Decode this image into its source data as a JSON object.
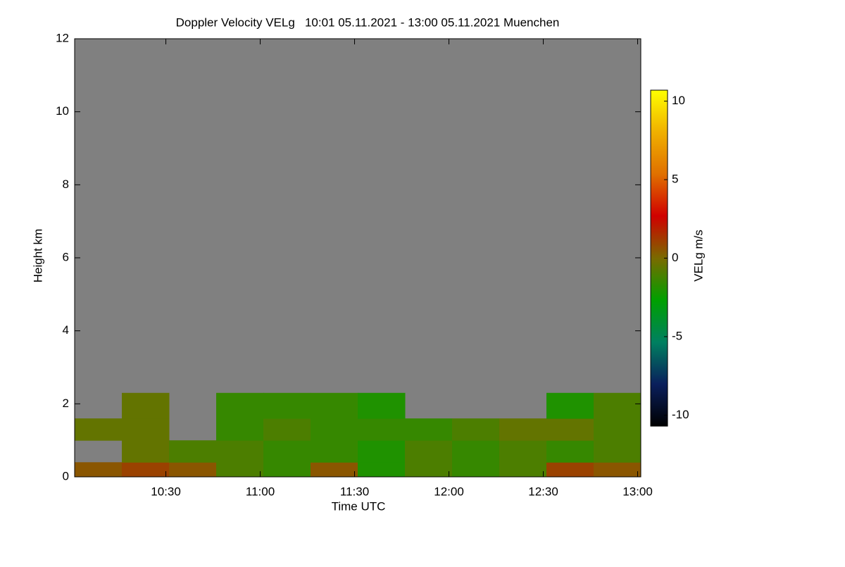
{
  "chart_data": {
    "type": "heatmap",
    "title": "Doppler Velocity VELg   10:01 05.11.2021 - 13:00 05.11.2021 Muenchen",
    "xlabel": "Time UTC",
    "ylabel": "Height km",
    "colorbar_label": "VELg m/s",
    "xlim": [
      601,
      781
    ],
    "xticks": [
      {
        "value": 630,
        "label": "10:30"
      },
      {
        "value": 660,
        "label": "11:00"
      },
      {
        "value": 690,
        "label": "11:30"
      },
      {
        "value": 720,
        "label": "12:00"
      },
      {
        "value": 750,
        "label": "12:30"
      },
      {
        "value": 780,
        "label": "13:00"
      }
    ],
    "ylim": [
      0,
      12
    ],
    "yticks": [
      0,
      2,
      4,
      6,
      8,
      10,
      12
    ],
    "clim": [
      -10.7,
      10.7
    ],
    "colorbar_ticks": [
      10,
      5,
      0,
      -5,
      -10
    ],
    "colormap": [
      "#000000",
      "#0a1f5c",
      "#008060",
      "#00a000",
      "#7a6a00",
      "#d00000",
      "#e07000",
      "#f0b000",
      "#ffff00"
    ],
    "background_color": "#808080",
    "x_edges": [
      601,
      616,
      631,
      646,
      661,
      676,
      691,
      706,
      721,
      736,
      751,
      766,
      781
    ],
    "y_edges": [
      0,
      0.4,
      1.0,
      1.6,
      2.3
    ],
    "values": [
      [
        0.5,
        1,
        0.5,
        -1,
        -1.5,
        0.5,
        -2,
        -1,
        -1.5,
        -1,
        1,
        0.5
      ],
      [
        null,
        -0.5,
        -1,
        -1,
        -1.5,
        -1.5,
        -2,
        -1,
        -1.5,
        -1,
        -1.5,
        -1
      ],
      [
        -0.5,
        -0.5,
        null,
        -1.5,
        -1,
        -1.5,
        -1.5,
        -1.5,
        -1,
        -0.5,
        -0.5,
        -1
      ],
      [
        null,
        -0.5,
        null,
        -1.5,
        -1.5,
        -1.5,
        -2,
        null,
        null,
        null,
        -2,
        -1
      ]
    ]
  }
}
